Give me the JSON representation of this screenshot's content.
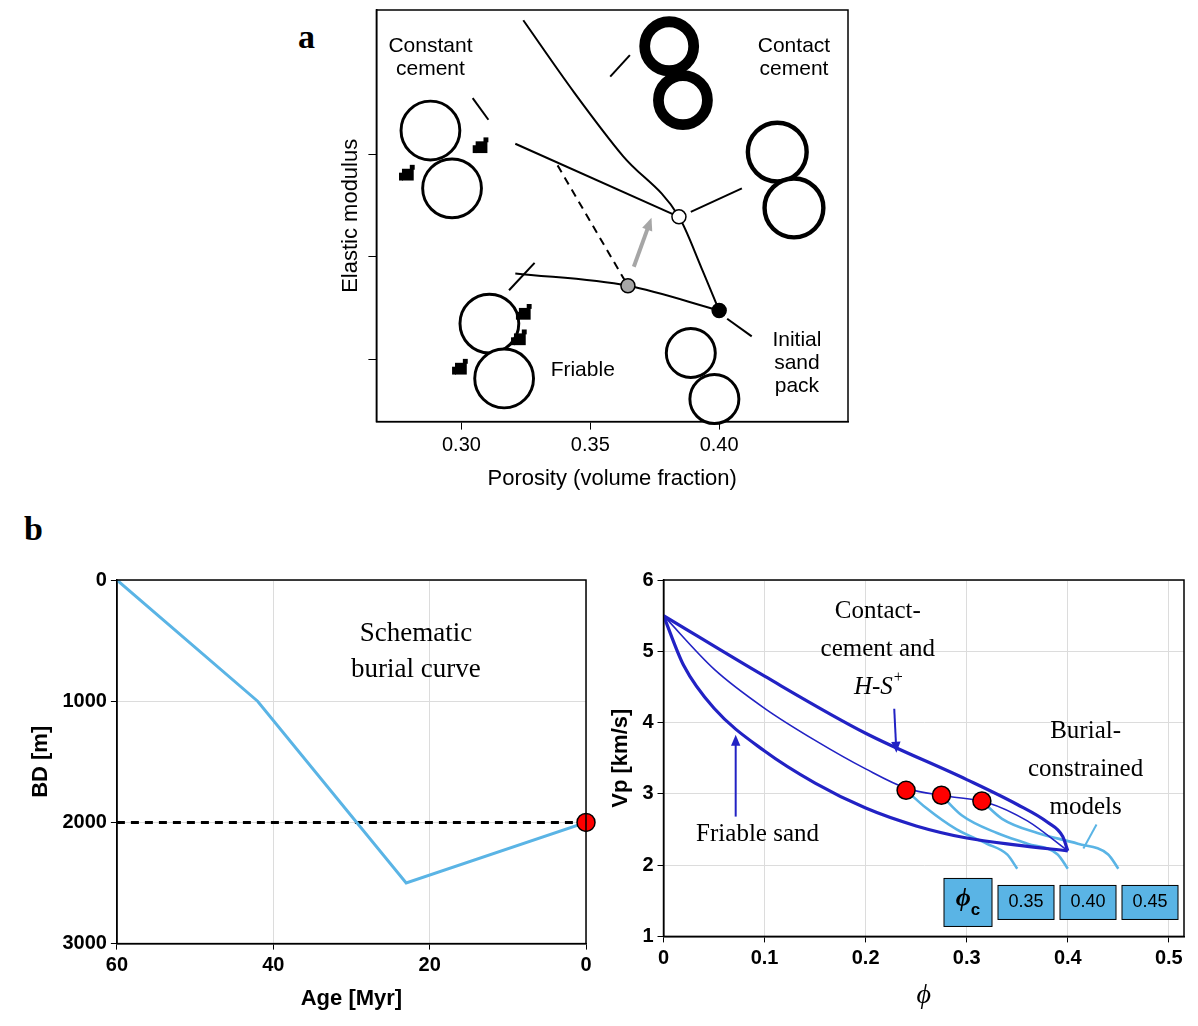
{
  "chart_data": [
    {
      "panel": "a",
      "type": "line",
      "x_label": "Porosity (volume fraction)",
      "y_label": "Elastic modulus",
      "xlim": [
        0.267,
        0.45
      ],
      "xticks": [
        {
          "value": 0.3,
          "label": "0.30"
        },
        {
          "value": 0.35,
          "label": "0.35"
        },
        {
          "value": 0.4,
          "label": "0.40"
        }
      ],
      "ylim": [
        -0.6,
        3.4
      ],
      "yticks": [
        0,
        1,
        2
      ],
      "tick_labels": "x",
      "grid": false,
      "series": [
        {
          "color": "#000000",
          "x": [
            0.324,
            0.3437,
            0.3627,
            0.3844,
            0.3932,
            0.4
          ],
          "values": [
            3.3,
            2.6,
            1.98,
            1.39,
            0.89,
            0.48
          ]
        },
        {
          "color": "#000000",
          "x": [
            0.3209,
            0.3844
          ],
          "values": [
            2.1,
            1.39
          ]
        },
        {
          "color": "#000000",
          "x": [
            0.3209,
            0.3646,
            0.4
          ],
          "values": [
            0.84,
            0.72,
            0.48
          ]
        },
        {
          "color": "#000000",
          "line_style": "dashed",
          "x": [
            0.3373,
            0.3646
          ],
          "values": [
            1.89,
            0.72
          ]
        },
        {
          "type": "scatter",
          "marker": "circle",
          "color": "#ffffff",
          "x": [
            0.3844
          ],
          "values": [
            1.39
          ]
        },
        {
          "type": "scatter",
          "marker": "circle",
          "color": "#000000",
          "x": [
            0.4
          ],
          "values": [
            0.48
          ]
        },
        {
          "type": "scatter",
          "marker": "circle",
          "color": "#a6a6a6",
          "x": [
            0.3646
          ],
          "values": [
            0.72
          ]
        }
      ],
      "annotations": [
        {
          "lines": [
            "Constant",
            "cement"
          ]
        },
        {
          "lines": [
            "Contact",
            "cement"
          ]
        },
        {
          "lines": [
            "Friable"
          ]
        },
        {
          "lines": [
            "Initial",
            "sand",
            "pack"
          ]
        }
      ]
    },
    {
      "panel": "b",
      "type": "line",
      "x_label": "Age [Myr]",
      "y_label": "BD [m]",
      "xlim": [
        60,
        0
      ],
      "xticks": [
        60,
        40,
        20,
        0
      ],
      "ylim": [
        3000,
        0
      ],
      "yticks": [
        0,
        1000,
        2000,
        3000
      ],
      "grid": true,
      "series": [
        {
          "color": "#5ab4e5",
          "x": [
            60,
            42,
            23,
            0
          ],
          "values": [
            0,
            1000,
            2500,
            2000
          ]
        },
        {
          "color": "#000000",
          "line_style": "dashed",
          "x": [
            60,
            0
          ],
          "values": [
            2000,
            2000
          ]
        },
        {
          "type": "scatter",
          "marker": "circle",
          "color": "#ff0000",
          "x": [
            0
          ],
          "values": [
            2000
          ]
        }
      ],
      "annotations": [
        {
          "lines": [
            "Schematic",
            "burial curve"
          ]
        }
      ]
    },
    {
      "type": "line",
      "x_label": "ϕ",
      "y_label": "Vp [km/s]",
      "xlim": [
        0,
        0.515
      ],
      "xticks": [
        0,
        0.1,
        0.2,
        0.3,
        0.4,
        0.5
      ],
      "ylim": [
        1,
        6
      ],
      "yticks": [
        1,
        2,
        3,
        4,
        5,
        6
      ],
      "grid": true,
      "series": [
        {
          "color": "#2222c4",
          "line_style": "thick",
          "x": [
            0,
            0.1,
            0.2,
            0.3,
            0.35,
            0.38,
            0.395,
            0.4
          ],
          "values": [
            5.5,
            4.65,
            3.85,
            3.2,
            2.85,
            2.6,
            2.4,
            2.2
          ]
        },
        {
          "color": "#2222c4",
          "line_style": "thin",
          "x": [
            0,
            0.05,
            0.1,
            0.15,
            0.2,
            0.24,
            0.28,
            0.32,
            0.36,
            0.4
          ],
          "values": [
            5.5,
            4.75,
            4.2,
            3.75,
            3.35,
            3.08,
            2.97,
            2.88,
            2.62,
            2.2
          ]
        },
        {
          "color": "#2222c4",
          "line_style": "thick",
          "x": [
            0,
            0.02,
            0.05,
            0.1,
            0.15,
            0.2,
            0.25,
            0.3,
            0.35,
            0.4
          ],
          "values": [
            5.5,
            4.8,
            4.2,
            3.6,
            3.15,
            2.8,
            2.55,
            2.38,
            2.28,
            2.2
          ]
        },
        {
          "color": "#5ab4e5",
          "x": [
            0.24,
            0.26,
            0.29,
            0.32,
            0.34,
            0.35
          ],
          "values": [
            3.05,
            2.8,
            2.5,
            2.3,
            2.15,
            1.95
          ]
        },
        {
          "color": "#5ab4e5",
          "x": [
            0.275,
            0.295,
            0.33,
            0.36,
            0.39,
            0.4
          ],
          "values": [
            2.98,
            2.7,
            2.45,
            2.3,
            2.15,
            1.95
          ]
        },
        {
          "color": "#5ab4e5",
          "x": [
            0.315,
            0.335,
            0.37,
            0.41,
            0.44,
            0.45
          ],
          "values": [
            2.9,
            2.65,
            2.45,
            2.3,
            2.15,
            1.95
          ]
        },
        {
          "type": "scatter",
          "marker": "circle",
          "color": "#ff0000",
          "x": [
            0.24,
            0.275,
            0.315
          ],
          "values": [
            3.05,
            2.98,
            2.9
          ]
        }
      ],
      "annotations": [
        {
          "lines": [
            "Contact-",
            "cement and",
            "H-S+"
          ]
        },
        {
          "lines": [
            "Friable sand"
          ]
        },
        {
          "lines": [
            "Burial-",
            "constrained",
            "models"
          ]
        }
      ],
      "phi_c": {
        "label": "ϕc",
        "labels": [
          "0.35",
          "0.40",
          "0.45"
        ]
      }
    }
  ]
}
